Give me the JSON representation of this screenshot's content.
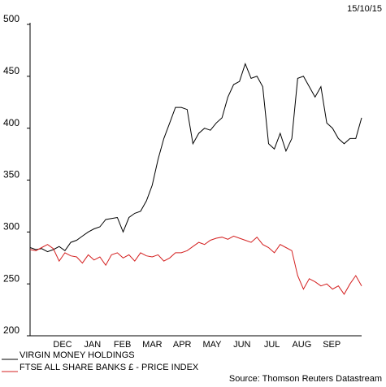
{
  "chart_data": {
    "type": "line",
    "date": "15/10/15",
    "source": "Source: Thomson Reuters Datastream",
    "x_tick_labels": [
      "DEC",
      "JAN",
      "FEB",
      "MAR",
      "APR",
      "MAY",
      "JUN",
      "JUL",
      "AUG",
      "SEP"
    ],
    "ylim": [
      200,
      500
    ],
    "yticks": [
      200,
      250,
      300,
      350,
      400,
      450,
      500
    ],
    "series": [
      {
        "name": "VIRGIN MONEY HOLDINGS",
        "color": "#000000",
        "values": [
          285,
          283,
          284,
          281,
          283,
          286,
          282,
          290,
          292,
          296,
          300,
          303,
          305,
          312,
          313,
          314,
          300,
          314,
          318,
          320,
          330,
          345,
          370,
          390,
          405,
          420,
          420,
          418,
          385,
          395,
          400,
          398,
          405,
          410,
          430,
          442,
          445,
          462,
          448,
          450,
          440,
          385,
          380,
          395,
          378,
          390,
          448,
          450,
          440,
          430,
          440,
          405,
          400,
          390,
          385,
          390,
          390,
          410
        ]
      },
      {
        "name": "FTSE ALL SHARE BANKS £ - PRICE INDEX",
        "color": "#d42020",
        "values": [
          283,
          282,
          285,
          288,
          284,
          272,
          280,
          277,
          276,
          270,
          278,
          273,
          276,
          268,
          278,
          280,
          275,
          278,
          272,
          280,
          277,
          276,
          278,
          272,
          275,
          280,
          280,
          282,
          286,
          290,
          288,
          292,
          294,
          295,
          293,
          296,
          294,
          292,
          290,
          295,
          288,
          285,
          280,
          288,
          285,
          282,
          258,
          245,
          255,
          252,
          248,
          250,
          245,
          248,
          240,
          250,
          258,
          248
        ]
      }
    ]
  }
}
